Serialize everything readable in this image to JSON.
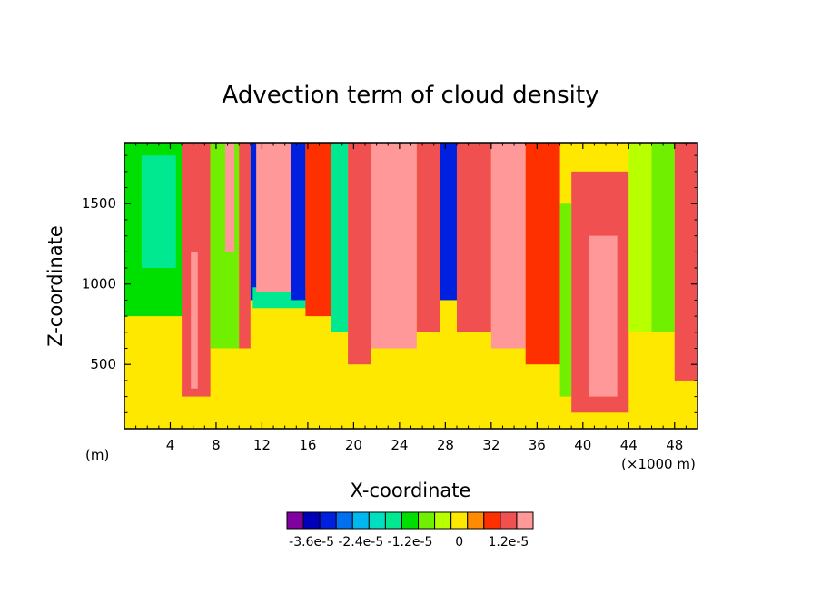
{
  "chart_data": {
    "type": "heatmap",
    "title": "Advection term of cloud density",
    "xlabel": "X-coordinate",
    "ylabel": "Z-coordinate",
    "x_unit": "(×1000 m)",
    "y_unit": "(m)",
    "xlim": [
      0,
      50
    ],
    "ylim": [
      100,
      1880
    ],
    "xticks": [
      4,
      8,
      12,
      16,
      20,
      24,
      28,
      32,
      36,
      40,
      44,
      48
    ],
    "yticks": [
      500,
      1000,
      1500
    ],
    "grid": false,
    "colorbar": {
      "placement": "bottom",
      "colors": [
        "#8000a0",
        "#0000b8",
        "#0020e0",
        "#0070f0",
        "#00b8f0",
        "#00e0c0",
        "#00e890",
        "#00e000",
        "#70f000",
        "#b8ff00",
        "#ffe800",
        "#ff8c00",
        "#ff3000",
        "#f05050",
        "#ff9898"
      ],
      "labels": [
        "-3.6e-5",
        "-2.4e-5",
        "-1.2e-5",
        "0",
        "1.2e-5"
      ],
      "label_values": [
        -3.6e-05,
        -2.4e-05,
        -1.2e-05,
        0,
        1.2e-05
      ],
      "min": -4.2e-05,
      "max": 1.8e-05
    },
    "field_regions": [
      {
        "x": [
          0,
          50
        ],
        "z": [
          100,
          1880
        ],
        "value": 0.0
      },
      {
        "x": [
          0,
          50
        ],
        "z": [
          100,
          700
        ],
        "value": -2e-06
      },
      {
        "x": [
          0,
          6
        ],
        "z": [
          800,
          1880
        ],
        "value": -1.2e-05
      },
      {
        "x": [
          1.5,
          4.5
        ],
        "z": [
          1100,
          1800
        ],
        "value": -1.6e-05
      },
      {
        "x": [
          5,
          7.5
        ],
        "z": [
          300,
          1880
        ],
        "value": 1e-05
      },
      {
        "x": [
          5.8,
          6.4
        ],
        "z": [
          350,
          1200
        ],
        "value": 2e-05
      },
      {
        "x": [
          7.5,
          10
        ],
        "z": [
          600,
          1880
        ],
        "value": -6e-06
      },
      {
        "x": [
          8.8,
          9.6
        ],
        "z": [
          1200,
          1880
        ],
        "value": 2e-05
      },
      {
        "x": [
          10,
          11
        ],
        "z": [
          600,
          1880
        ],
        "value": 1e-05
      },
      {
        "x": [
          11,
          12
        ],
        "z": [
          900,
          1880
        ],
        "value": -3.2e-05
      },
      {
        "x": [
          11.2,
          15.8
        ],
        "z": [
          850,
          980
        ],
        "value": -1.8e-05
      },
      {
        "x": [
          11.5,
          15
        ],
        "z": [
          950,
          1880
        ],
        "value": 2e-05
      },
      {
        "x": [
          14.5,
          15.8
        ],
        "z": [
          900,
          1880
        ],
        "value": -3.2e-05
      },
      {
        "x": [
          15.8,
          18
        ],
        "z": [
          800,
          1880
        ],
        "value": 6e-06
      },
      {
        "x": [
          18,
          19.5
        ],
        "z": [
          700,
          1880
        ],
        "value": -1.4e-05
      },
      {
        "x": [
          19.5,
          21.5
        ],
        "z": [
          500,
          1880
        ],
        "value": 1e-05
      },
      {
        "x": [
          21.5,
          25.5
        ],
        "z": [
          600,
          1880
        ],
        "value": 2e-05
      },
      {
        "x": [
          25.5,
          27.5
        ],
        "z": [
          700,
          1880
        ],
        "value": 1e-05
      },
      {
        "x": [
          27.5,
          29
        ],
        "z": [
          900,
          1880
        ],
        "value": -3.2e-05
      },
      {
        "x": [
          29,
          32
        ],
        "z": [
          700,
          1880
        ],
        "value": 1e-05
      },
      {
        "x": [
          32,
          35
        ],
        "z": [
          600,
          1880
        ],
        "value": 2e-05
      },
      {
        "x": [
          35,
          38
        ],
        "z": [
          500,
          1880
        ],
        "value": 6e-06
      },
      {
        "x": [
          38,
          39
        ],
        "z": [
          300,
          1500
        ],
        "value": -6e-06
      },
      {
        "x": [
          39,
          44
        ],
        "z": [
          200,
          1700
        ],
        "value": 1e-05
      },
      {
        "x": [
          40.5,
          43
        ],
        "z": [
          300,
          1300
        ],
        "value": 2e-05
      },
      {
        "x": [
          44,
          46
        ],
        "z": [
          700,
          1880
        ],
        "value": -4e-06
      },
      {
        "x": [
          46,
          48
        ],
        "z": [
          700,
          1880
        ],
        "value": -1e-05
      },
      {
        "x": [
          48,
          50
        ],
        "z": [
          400,
          1880
        ],
        "value": 1e-05
      }
    ]
  }
}
